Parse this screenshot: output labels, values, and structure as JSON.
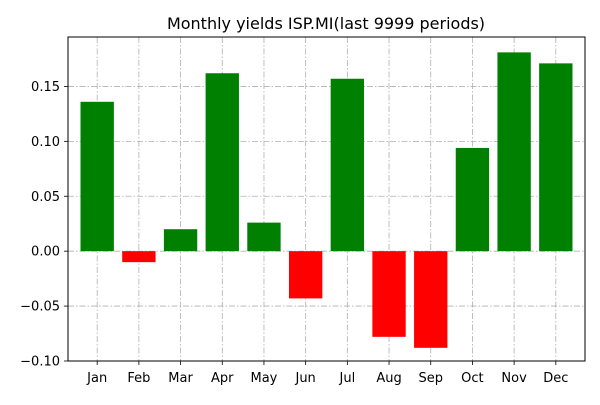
{
  "chart_data": {
    "type": "bar",
    "title": "Monthly yields ISP.MI(last 9999 periods)",
    "xlabel": "",
    "ylabel": "",
    "categories": [
      "Jan",
      "Feb",
      "Mar",
      "Apr",
      "May",
      "Jun",
      "Jul",
      "Aug",
      "Sep",
      "Oct",
      "Nov",
      "Dec"
    ],
    "values": [
      0.136,
      -0.01,
      0.02,
      0.162,
      0.026,
      -0.043,
      0.157,
      -0.078,
      -0.088,
      0.094,
      0.181,
      0.171
    ],
    "ylim": [
      -0.1,
      0.195
    ],
    "yticks": [
      -0.1,
      -0.05,
      0.0,
      0.05,
      0.1,
      0.15
    ],
    "ytick_labels": [
      "−0.10",
      "−0.05",
      "0.00",
      "0.05",
      "0.10",
      "0.15"
    ],
    "grid": true,
    "legend": "none",
    "colors": {
      "positive": "#008000",
      "negative": "#ff0000",
      "grid": "#b0b0b0",
      "axis": "#000000"
    }
  }
}
